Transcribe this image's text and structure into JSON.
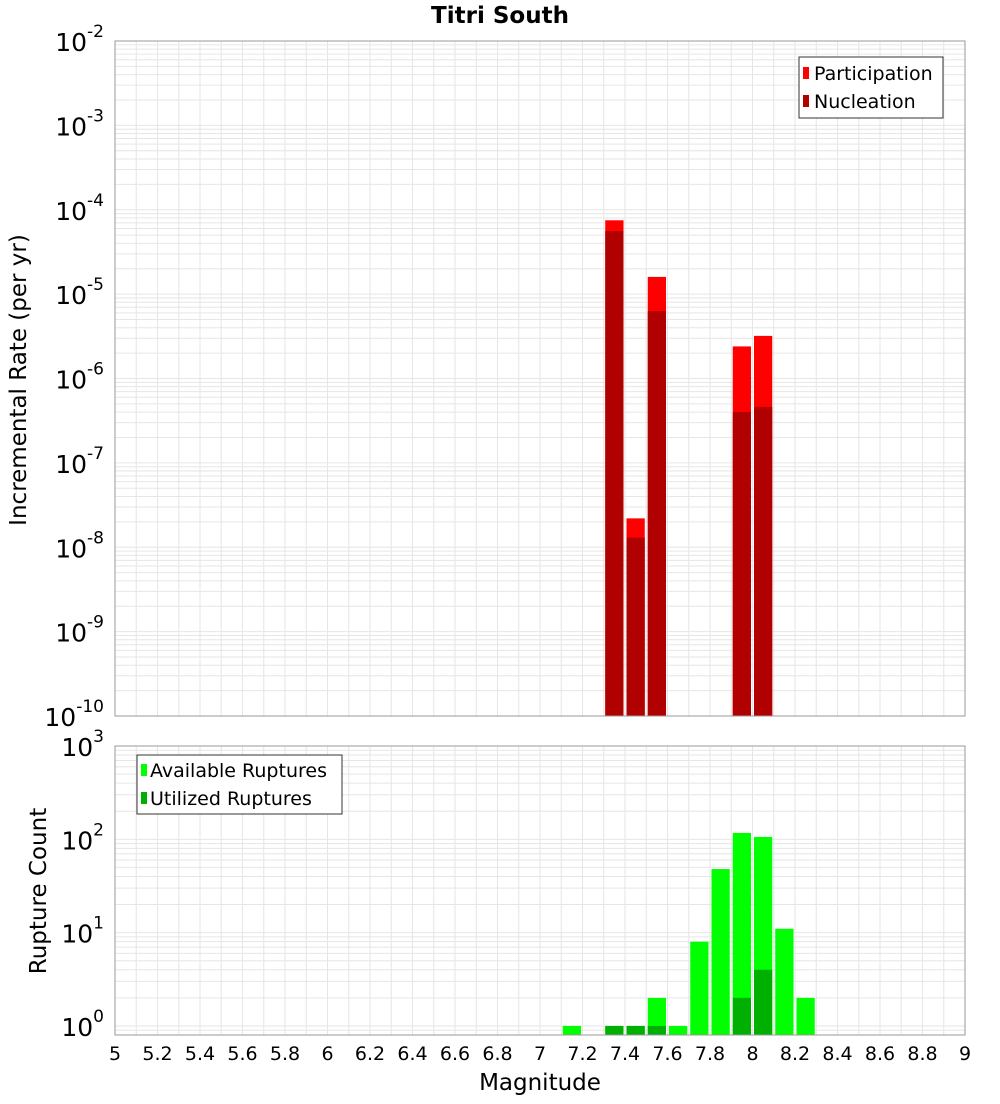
{
  "title": "Titri South",
  "xlabel": "Magnitude",
  "x_ticks": [
    "5",
    "5.2",
    "5.4",
    "5.6",
    "5.8",
    "6",
    "6.2",
    "6.4",
    "6.6",
    "6.8",
    "7",
    "7.2",
    "7.4",
    "7.6",
    "7.8",
    "8",
    "8.2",
    "8.4",
    "8.6",
    "8.8",
    "9"
  ],
  "colors": {
    "participation": "#ff0000",
    "nucleation": "#b00000",
    "available": "#00ff00",
    "utilized": "#00b000",
    "grid": "#e6e6e6",
    "frame": "#999999"
  },
  "chart_data": [
    {
      "type": "bar",
      "title": "Titri South",
      "xlabel": "Magnitude",
      "ylabel": "Incremental Rate (per yr)",
      "xlim": [
        5,
        9
      ],
      "ylim": [
        1e-10,
        0.01
      ],
      "yscale": "log",
      "grid": true,
      "legend_position": "top-right",
      "y_tick_labels": [
        {
          "base": "10",
          "exp": "-2"
        },
        {
          "base": "10",
          "exp": "-3"
        },
        {
          "base": "10",
          "exp": "-4"
        },
        {
          "base": "10",
          "exp": "-5"
        },
        {
          "base": "10",
          "exp": "-6"
        },
        {
          "base": "10",
          "exp": "-7"
        },
        {
          "base": "10",
          "exp": "-8"
        },
        {
          "base": "10",
          "exp": "-9"
        },
        {
          "base": "10",
          "exp": "-10"
        }
      ],
      "x": [
        7.35,
        7.45,
        7.55,
        7.95,
        8.05
      ],
      "series": [
        {
          "name": "Participation",
          "values": [
            7.5e-05,
            2.2e-08,
            1.6e-05,
            2.4e-06,
            3.2e-06
          ]
        },
        {
          "name": "Nucleation",
          "values": [
            5.6e-05,
            1.3e-08,
            6.3e-06,
            4e-07,
            4.6e-07
          ]
        }
      ]
    },
    {
      "type": "bar",
      "xlabel": "Magnitude",
      "ylabel": "Rupture Count",
      "xlim": [
        5,
        9
      ],
      "ylim": [
        0.8,
        1000
      ],
      "yscale": "log",
      "grid": true,
      "legend_position": "top-left",
      "y_tick_labels": [
        {
          "base": "10",
          "exp": "3"
        },
        {
          "base": "10",
          "exp": "2"
        },
        {
          "base": "10",
          "exp": "1"
        },
        {
          "base": "10",
          "exp": "0"
        }
      ],
      "x": [
        7.15,
        7.35,
        7.45,
        7.55,
        7.65,
        7.75,
        7.85,
        7.95,
        8.05,
        8.15,
        8.25
      ],
      "series": [
        {
          "name": "Available Ruptures",
          "values": [
            1,
            1,
            1,
            2,
            1,
            8,
            48,
            117,
            106,
            11,
            2
          ]
        },
        {
          "name": "Utilized Ruptures",
          "values": [
            0,
            1,
            1,
            1,
            0,
            0,
            0,
            2,
            4,
            0,
            0
          ]
        }
      ]
    }
  ]
}
